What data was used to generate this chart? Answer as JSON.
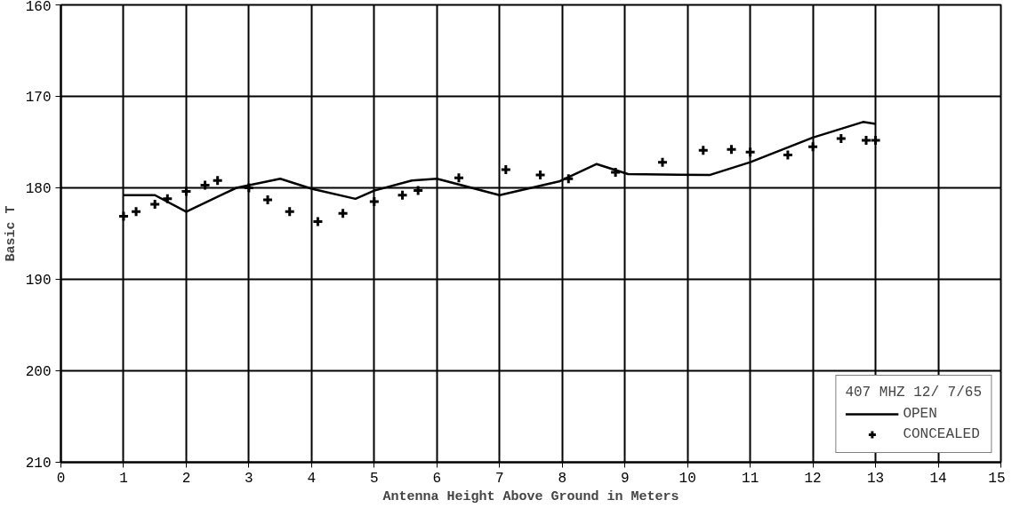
{
  "chart_data": {
    "type": "line",
    "xlabel": "Antenna Height Above Ground in Meters",
    "ylabel": "Basic T",
    "legend_title": "407 MHZ 12/ 7/65",
    "xlim": [
      0,
      15
    ],
    "xticks": [
      0,
      1,
      2,
      3,
      4,
      5,
      6,
      7,
      8,
      9,
      10,
      11,
      12,
      13,
      14,
      15
    ],
    "ylim": [
      210,
      160
    ],
    "yticks": [
      160,
      170,
      180,
      190,
      200,
      210
    ],
    "grid": true,
    "legend": "bottom right",
    "series": [
      {
        "name": "OPEN",
        "color": "#000000",
        "line_style": "solid",
        "marker": "none",
        "x": [
          1,
          1.5,
          2,
          2.8,
          3.5,
          4,
          4.7,
          5,
          5.6,
          6,
          7,
          7.95,
          8.55,
          9.05,
          10.35,
          11,
          12,
          12.8,
          13
        ],
        "values": [
          180.8,
          180.8,
          182.6,
          180,
          179,
          180.1,
          181.2,
          180.3,
          179.2,
          179,
          180.8,
          179.3,
          177.4,
          178.5,
          178.6,
          177.2,
          174.5,
          172.8,
          173
        ]
      },
      {
        "name": "CONCEALED",
        "type": "scatter",
        "color": "#000000",
        "marker": "cross",
        "x": [
          1,
          1.2,
          1.5,
          1.7,
          2,
          2.3,
          2.5,
          3,
          3.3,
          3.65,
          4.1,
          4.5,
          5,
          5.45,
          5.7,
          6.35,
          7.1,
          7.65,
          8.1,
          8.85,
          9.6,
          10.25,
          10.7,
          11,
          11.6,
          12,
          12.45,
          12.85,
          13
        ],
        "values": [
          183.1,
          182.6,
          181.8,
          181.2,
          180.4,
          179.7,
          179.2,
          180,
          181.3,
          182.6,
          183.7,
          182.8,
          181.5,
          180.8,
          180.3,
          178.9,
          178,
          178.6,
          179,
          178.3,
          177.2,
          175.9,
          175.8,
          176.1,
          176.4,
          175.5,
          174.6,
          174.8,
          174.8
        ]
      }
    ]
  }
}
